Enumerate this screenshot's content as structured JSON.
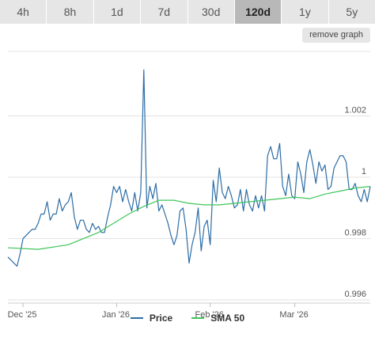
{
  "tabs": [
    {
      "label": "4h",
      "selected": false
    },
    {
      "label": "8h",
      "selected": false
    },
    {
      "label": "1d",
      "selected": false
    },
    {
      "label": "7d",
      "selected": false
    },
    {
      "label": "30d",
      "selected": false
    },
    {
      "label": "120d",
      "selected": true
    },
    {
      "label": "1y",
      "selected": false
    },
    {
      "label": "5y",
      "selected": false
    }
  ],
  "remove_graph_label": "remove graph",
  "chart_data": {
    "type": "line",
    "x_ticks": [
      "Dec '25",
      "Jan '26",
      "Feb '26",
      "Mar '26"
    ],
    "x_tick_positions": [
      5,
      36,
      67,
      95
    ],
    "y_ticks": [
      "1.002",
      "1",
      "0.998",
      "0.996"
    ],
    "y_tick_values": [
      1.002,
      1.0,
      0.998,
      0.996
    ],
    "ylim": [
      0.9959,
      1.0041
    ],
    "xlim": [
      0,
      120
    ],
    "grid": true,
    "legend_position": "bottom",
    "series": [
      {
        "name": "Price",
        "color": "#2c6da6",
        "x": [
          0,
          1,
          2,
          3,
          4,
          5,
          6,
          7,
          8,
          9,
          10,
          11,
          12,
          13,
          14,
          15,
          16,
          17,
          18,
          19,
          20,
          21,
          22,
          23,
          24,
          25,
          26,
          27,
          28,
          29,
          30,
          31,
          32,
          33,
          34,
          35,
          36,
          37,
          38,
          39,
          40,
          41,
          42,
          43,
          44,
          45,
          46,
          47,
          48,
          49,
          50,
          51,
          52,
          53,
          54,
          55,
          56,
          57,
          58,
          59,
          60,
          61,
          62,
          63,
          64,
          65,
          66,
          67,
          68,
          69,
          70,
          71,
          72,
          73,
          74,
          75,
          76,
          77,
          78,
          79,
          80,
          81,
          82,
          83,
          84,
          85,
          86,
          87,
          88,
          89,
          90,
          91,
          92,
          93,
          94,
          95,
          96,
          97,
          98,
          99,
          100,
          101,
          102,
          103,
          104,
          105,
          106,
          107,
          108,
          109,
          110,
          111,
          112,
          113,
          114,
          115,
          116,
          117,
          118,
          119,
          120
        ],
        "values": [
          0.9974,
          0.9973,
          0.9972,
          0.9971,
          0.9975,
          0.998,
          0.9981,
          0.9982,
          0.9983,
          0.9983,
          0.9985,
          0.9988,
          0.9988,
          0.9992,
          0.9986,
          0.9988,
          0.9988,
          0.9993,
          0.9989,
          0.9991,
          0.9992,
          0.9995,
          0.9987,
          0.9983,
          0.9986,
          0.9986,
          0.9983,
          0.9982,
          0.9985,
          0.9983,
          0.9984,
          0.9982,
          0.9982,
          0.9987,
          0.9991,
          0.9997,
          0.9995,
          0.9997,
          0.9992,
          0.9996,
          0.9992,
          0.9989,
          0.9995,
          0.9989,
          0.9995,
          1.0035,
          0.999,
          0.9997,
          0.9993,
          0.9998,
          0.9989,
          0.9991,
          0.9988,
          0.9985,
          0.9981,
          0.9978,
          0.9981,
          0.9989,
          0.999,
          0.9983,
          0.9972,
          0.9978,
          0.9982,
          0.999,
          0.9976,
          0.9984,
          0.9986,
          0.9978,
          0.9999,
          0.9992,
          1.0003,
          0.9995,
          0.9993,
          0.9997,
          0.9994,
          0.999,
          0.9991,
          0.9996,
          0.9989,
          0.9996,
          0.9991,
          0.9989,
          0.9994,
          0.999,
          0.9994,
          0.9989,
          1.0007,
          1.001,
          1.0006,
          1.0006,
          1.0011,
          0.9997,
          0.9994,
          1.0001,
          0.9994,
          0.9993,
          1.0005,
          1.0001,
          0.9995,
          1.0005,
          1.0009,
          1.0004,
          0.9998,
          1.0005,
          1.0002,
          1.0004,
          0.9996,
          0.9997,
          1.0003,
          1.0005,
          1.0007,
          1.0007,
          1.0005,
          0.9996,
          0.9996,
          0.9998,
          0.9994,
          0.9992,
          0.9996,
          0.9992,
          0.9997
        ]
      },
      {
        "name": "SMA 50",
        "color": "#3ec55a",
        "x": [
          0,
          10,
          20,
          30,
          40,
          45,
          50,
          55,
          60,
          65,
          70,
          75,
          80,
          85,
          90,
          95,
          100,
          105,
          110,
          115,
          120
        ],
        "values": [
          0.9977,
          0.99765,
          0.9978,
          0.9982,
          0.9988,
          0.99905,
          0.99925,
          0.99925,
          0.99915,
          0.9991,
          0.9991,
          0.99915,
          0.9992,
          0.99925,
          0.9993,
          0.99935,
          0.9993,
          0.99945,
          0.99955,
          0.99965,
          0.9997
        ]
      }
    ]
  }
}
